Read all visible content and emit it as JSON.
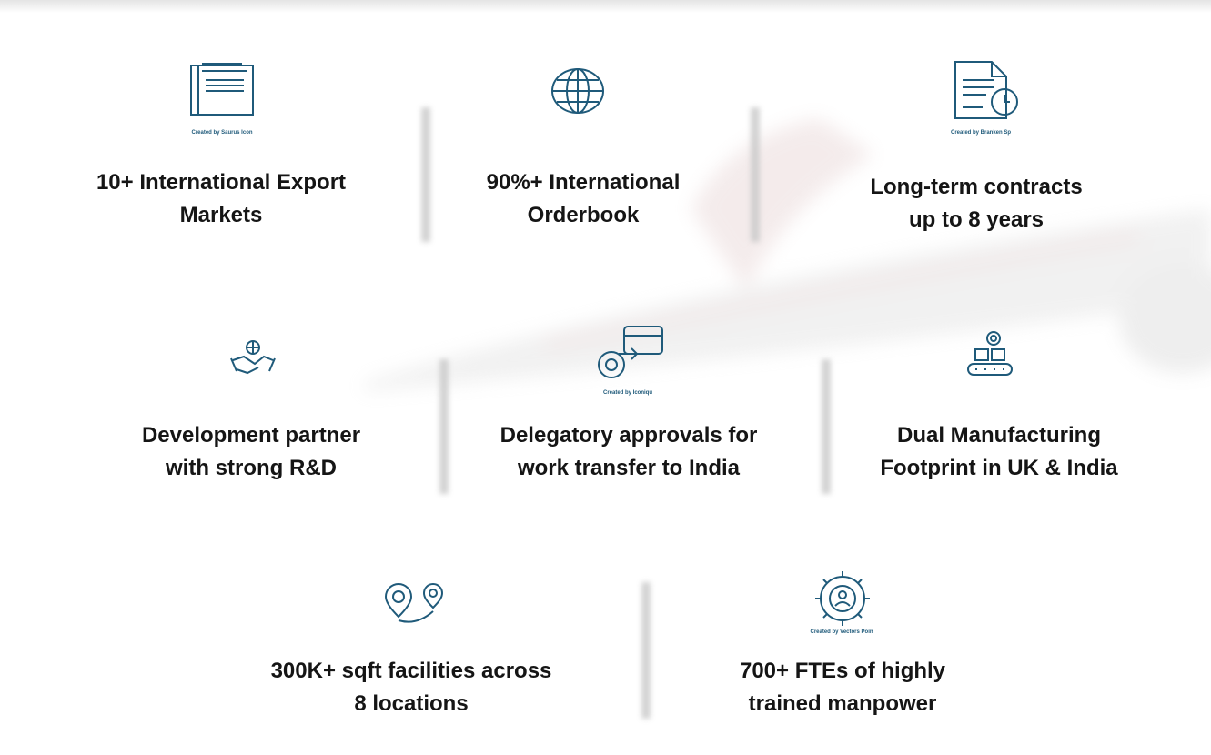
{
  "items": [
    {
      "lines": [
        "10+ International Export",
        "Markets"
      ],
      "credit": "Created by Saurus Icon"
    },
    {
      "lines": [
        "90%+ International",
        "Orderbook"
      ]
    },
    {
      "lines": [
        "Long-term contracts",
        "up to 8 years"
      ],
      "credit": "Created by Branken Sp"
    },
    {
      "lines": [
        "Development partner",
        "with strong R&D"
      ]
    },
    {
      "lines": [
        "Delegatory approvals for",
        "work transfer to India"
      ],
      "credit": "Created by Iconiqu"
    },
    {
      "lines": [
        "Dual Manufacturing",
        "Footprint in UK & India"
      ]
    },
    {
      "lines": [
        "300K+ sqft facilities across",
        "8 locations"
      ]
    },
    {
      "lines": [
        "700+ FTEs of highly",
        "trained manpower"
      ],
      "credit": "Created by Vectors Poin"
    }
  ]
}
